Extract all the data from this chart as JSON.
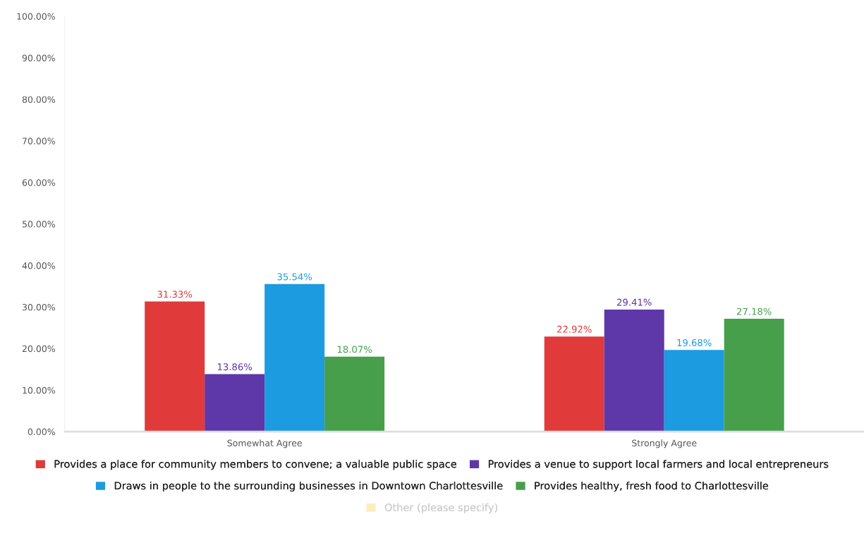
{
  "chart_data": {
    "type": "bar",
    "categories": [
      "Somewhat Agree",
      "Strongly Agree"
    ],
    "series": [
      {
        "name": "Provides a place for community members to convene; a valuable public space",
        "color": "#e03a3a",
        "values": [
          31.33,
          22.92
        ],
        "value_labels": [
          "31.33%",
          "22.92%"
        ]
      },
      {
        "name": "Provides a venue to support local farmers and local entrepreneurs",
        "color": "#5e37a8",
        "values": [
          13.86,
          29.41
        ],
        "value_labels": [
          "13.86%",
          "29.41%"
        ]
      },
      {
        "name": "Draws in people to the surrounding businesses in Downtown Charlottesville",
        "color": "#1c9be0",
        "values": [
          35.54,
          19.68
        ],
        "value_labels": [
          "35.54%",
          "19.68%"
        ]
      },
      {
        "name": "Provides healthy, fresh food to Charlottesville",
        "color": "#479f4b",
        "values": [
          18.07,
          27.18
        ],
        "value_labels": [
          "18.07%",
          "27.18%"
        ]
      },
      {
        "name": "Other (please specify)",
        "color": "#fdedbd",
        "values": [
          null,
          null
        ]
      }
    ],
    "ylim": [
      0,
      100
    ],
    "yticks": [
      {
        "value": 0,
        "label": "0.00%"
      },
      {
        "value": 10,
        "label": "10.00%"
      },
      {
        "value": 20,
        "label": "20.00%"
      },
      {
        "value": 30,
        "label": "30.00%"
      },
      {
        "value": 40,
        "label": "40.00%"
      },
      {
        "value": 50,
        "label": "50.00%"
      },
      {
        "value": 60,
        "label": "60.00%"
      },
      {
        "value": 70,
        "label": "70.00%"
      },
      {
        "value": 80,
        "label": "80.00%"
      },
      {
        "value": 90,
        "label": "90.00%"
      },
      {
        "value": 100,
        "label": "100.00%"
      }
    ],
    "legend": "bottom"
  }
}
